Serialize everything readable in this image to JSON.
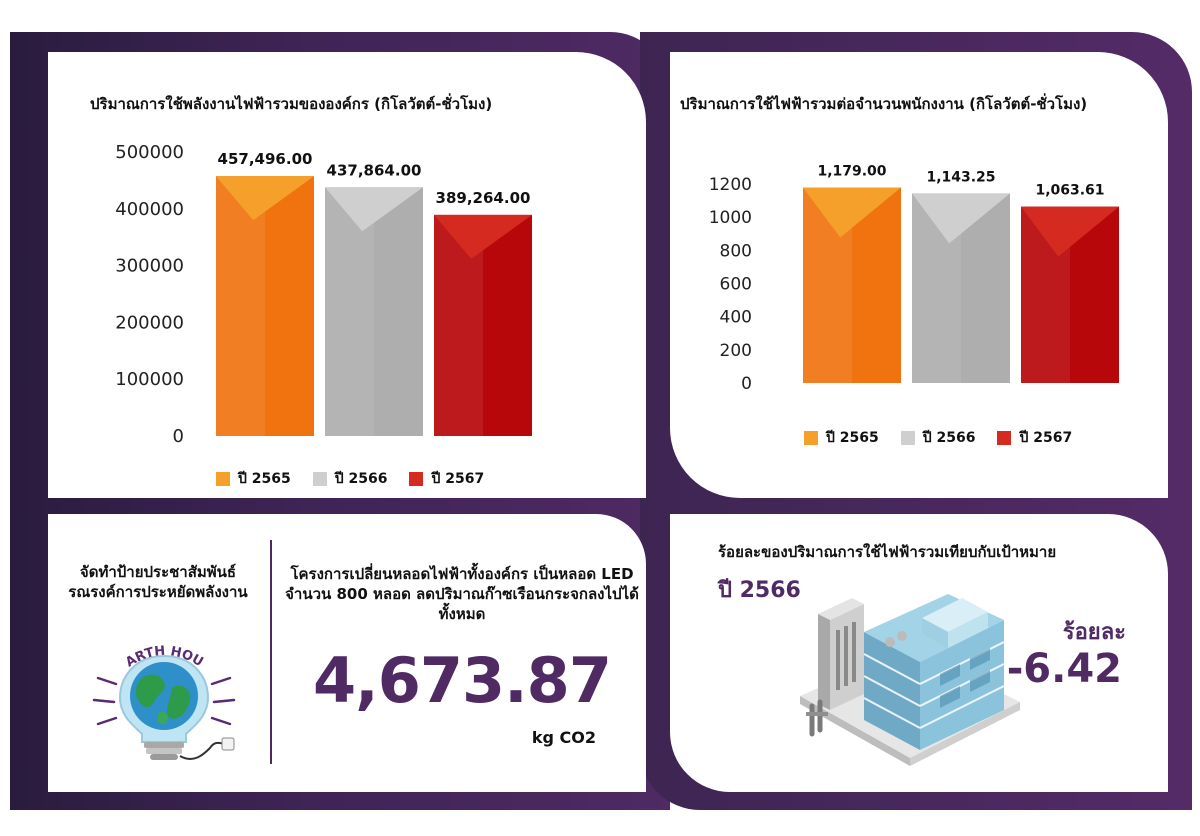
{
  "colors": {
    "y2565_front": "#f07310",
    "y2565_top": "#f5a02a",
    "y2566_front": "#aeaeae",
    "y2566_top": "#cfcfcf",
    "y2567_front": "#b8070b",
    "y2567_top": "#d42a1f",
    "purple": "#4f2a63"
  },
  "chart_data": [
    {
      "type": "bar",
      "title": "ปริมาณการใช้พลังงานไฟฟ้ารวมขององค์กร (กิโลวัตต์-ชั่วโมง)",
      "categories": [
        "ปี 2565",
        "ปี 2566",
        "ปี 2567"
      ],
      "values": [
        457496,
        437864,
        389264
      ],
      "data_labels": [
        "457,496.00",
        "437,864.00",
        "389,264.00"
      ],
      "yticks": [
        "500000",
        "400000",
        "300000",
        "200000",
        "100000",
        "0"
      ],
      "ylim": [
        0,
        500000
      ],
      "legend": [
        "ปี 2565",
        "ปี 2566",
        "ปี 2567"
      ],
      "legend_position": "bottom",
      "grid": false
    },
    {
      "type": "bar",
      "title": "ปริมาณการใช้ไฟฟ้ารวมต่อจำนวนพนักงงาน (กิโลวัตต์-ชั่วโมง)",
      "categories": [
        "ปี 2565",
        "ปี 2566",
        "ปี 2567"
      ],
      "values": [
        1179.0,
        1143.25,
        1063.61
      ],
      "data_labels": [
        "1,179.00",
        "1,143.25",
        "1,063.61"
      ],
      "yticks": [
        "1200",
        "1000",
        "800",
        "600",
        "400",
        "200",
        "0"
      ],
      "ylim": [
        0,
        1200
      ],
      "legend": [
        "ปี 2565",
        "ปี 2566",
        "ปี 2567"
      ],
      "legend_position": "bottom",
      "grid": false
    }
  ],
  "campaign": {
    "text": "จัดทำป้ายประชาสัมพันธ์รณรงค์การประหยัดพลังงาน",
    "icon": "earth-hour-lightbulb-icon",
    "icon_text": "EARTH HOUR"
  },
  "led_project": {
    "text": "โครงการเปลี่ยนหลอดไฟฟ้าทั้งองค์กร เป็นหลอด LED จำนวน 800 หลอด ลดปริมาณก๊าซเรือนกระจกลงไปได้ทั้งหมด",
    "value": "4,673.87",
    "unit": "kg CO2"
  },
  "target": {
    "title": "ร้อยละของปริมาณการใช้ไฟฟ้ารวมเทียบกับเป้าหมาย",
    "year": "ปี 2566",
    "label": "ร้อยละ",
    "value": "-6.42",
    "icon": "office-building-icon"
  }
}
